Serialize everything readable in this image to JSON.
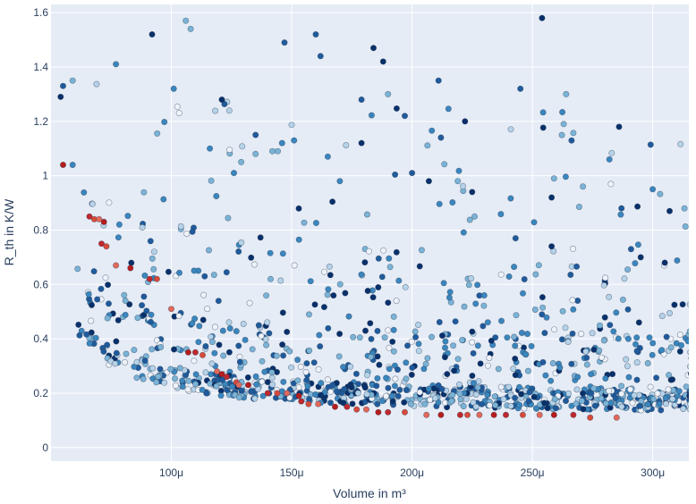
{
  "chart_data": {
    "type": "scatter",
    "title": "",
    "xlabel": "Volume in m³",
    "ylabel": "R_th in K/W",
    "xlim": [
      50,
      315
    ],
    "ylim": [
      -0.05,
      1.63
    ],
    "x_ticks": [
      {
        "value": 100,
        "label": "100μ"
      },
      {
        "value": 150,
        "label": "150μ"
      },
      {
        "value": 200,
        "label": "200μ"
      },
      {
        "value": 250,
        "label": "250μ"
      },
      {
        "value": 300,
        "label": "300μ"
      }
    ],
    "y_ticks": [
      {
        "value": 0,
        "label": "0"
      },
      {
        "value": 0.2,
        "label": "0.2"
      },
      {
        "value": 0.4,
        "label": "0.4"
      },
      {
        "value": 0.6,
        "label": "0.6"
      },
      {
        "value": 0.8,
        "label": "0.8"
      },
      {
        "value": 1,
        "label": "1"
      },
      {
        "value": 1.2,
        "label": "1.2"
      },
      {
        "value": 1.4,
        "label": "1.4"
      },
      {
        "value": 1.6,
        "label": "1.6"
      }
    ],
    "grid": true,
    "legend": "none",
    "colors": {
      "plot_bg": "#e5ecf6",
      "grid": "#ffffff",
      "pareto": "#c0282d",
      "palette": [
        "#08306b",
        "#1f5b9c",
        "#3a86be",
        "#7ab3d6",
        "#b5d2e8",
        "#eef3fa"
      ]
    },
    "pareto_points": [
      [
        55,
        1.04
      ],
      [
        66,
        0.85
      ],
      [
        68,
        0.84
      ],
      [
        70,
        0.84
      ],
      [
        72,
        0.83
      ],
      [
        71,
        0.75
      ],
      [
        73,
        0.74
      ],
      [
        77,
        0.67
      ],
      [
        83,
        0.66
      ],
      [
        91,
        0.62
      ],
      [
        94,
        0.62
      ],
      [
        100,
        0.51
      ],
      [
        107,
        0.35
      ],
      [
        110,
        0.35
      ],
      [
        113,
        0.34
      ],
      [
        119,
        0.28
      ],
      [
        121,
        0.27
      ],
      [
        123,
        0.26
      ],
      [
        127,
        0.24
      ],
      [
        128,
        0.23
      ],
      [
        132,
        0.23
      ],
      [
        140,
        0.2
      ],
      [
        144,
        0.2
      ],
      [
        148,
        0.2
      ],
      [
        153,
        0.19
      ],
      [
        154,
        0.17
      ],
      [
        157,
        0.16
      ],
      [
        161,
        0.16
      ],
      [
        168,
        0.15
      ],
      [
        173,
        0.15
      ],
      [
        177,
        0.14
      ],
      [
        181,
        0.14
      ],
      [
        186,
        0.13
      ],
      [
        190,
        0.13
      ],
      [
        197,
        0.13
      ],
      [
        206,
        0.12
      ],
      [
        212,
        0.12
      ],
      [
        220,
        0.12
      ],
      [
        223,
        0.12
      ],
      [
        228,
        0.12
      ],
      [
        234,
        0.12
      ],
      [
        239,
        0.12
      ],
      [
        246,
        0.12
      ],
      [
        253,
        0.12
      ],
      [
        259,
        0.12
      ],
      [
        267,
        0.12
      ],
      [
        274,
        0.11
      ],
      [
        285,
        0.11
      ]
    ],
    "highlight_points": [
      [
        54,
        1.29
      ],
      [
        55,
        1.33
      ],
      [
        59,
        1.35
      ],
      [
        59,
        1.04
      ],
      [
        77,
        1.41
      ],
      [
        92,
        1.52
      ],
      [
        101,
        1.32
      ],
      [
        106,
        1.57
      ],
      [
        108,
        1.54
      ],
      [
        121,
        1.28
      ],
      [
        147,
        1.49
      ],
      [
        160,
        1.52
      ],
      [
        162,
        1.44
      ],
      [
        179,
        1.28
      ],
      [
        184,
        1.47
      ],
      [
        188,
        1.42
      ],
      [
        190,
        1.3
      ],
      [
        197,
        1.22
      ],
      [
        211,
        1.35
      ],
      [
        212,
        1.14
      ],
      [
        222,
        1.2
      ],
      [
        245,
        1.32
      ],
      [
        254,
        1.58
      ],
      [
        263,
        1.19
      ],
      [
        264,
        1.3
      ],
      [
        286,
        1.18
      ],
      [
        287,
        0.88
      ],
      [
        300,
        0.95
      ],
      [
        307,
        0.87
      ],
      [
        282,
        1.06
      ],
      [
        291,
        0.73
      ],
      [
        295,
        0.7
      ],
      [
        305,
        0.68
      ],
      [
        258,
        0.74
      ],
      [
        243,
        0.77
      ],
      [
        271,
        0.96
      ],
      [
        258,
        0.92
      ],
      [
        259,
        0.99
      ],
      [
        226,
        0.85
      ],
      [
        230,
        0.56
      ],
      [
        165,
        1.07
      ],
      [
        179,
        1.12
      ],
      [
        170,
        0.98
      ],
      [
        126,
        1.01
      ],
      [
        116,
        1.1
      ],
      [
        129,
        1.05
      ],
      [
        135,
        1.08
      ],
      [
        135,
        1.15
      ],
      [
        142,
        1.09
      ],
      [
        151,
        1.13
      ],
      [
        146,
        1.12
      ],
      [
        200,
        1.01
      ],
      [
        207,
        0.98
      ],
      [
        219,
        0.98
      ],
      [
        225,
        0.94
      ]
    ],
    "cloud_seed": 20240611,
    "cloud_count": 1150
  }
}
